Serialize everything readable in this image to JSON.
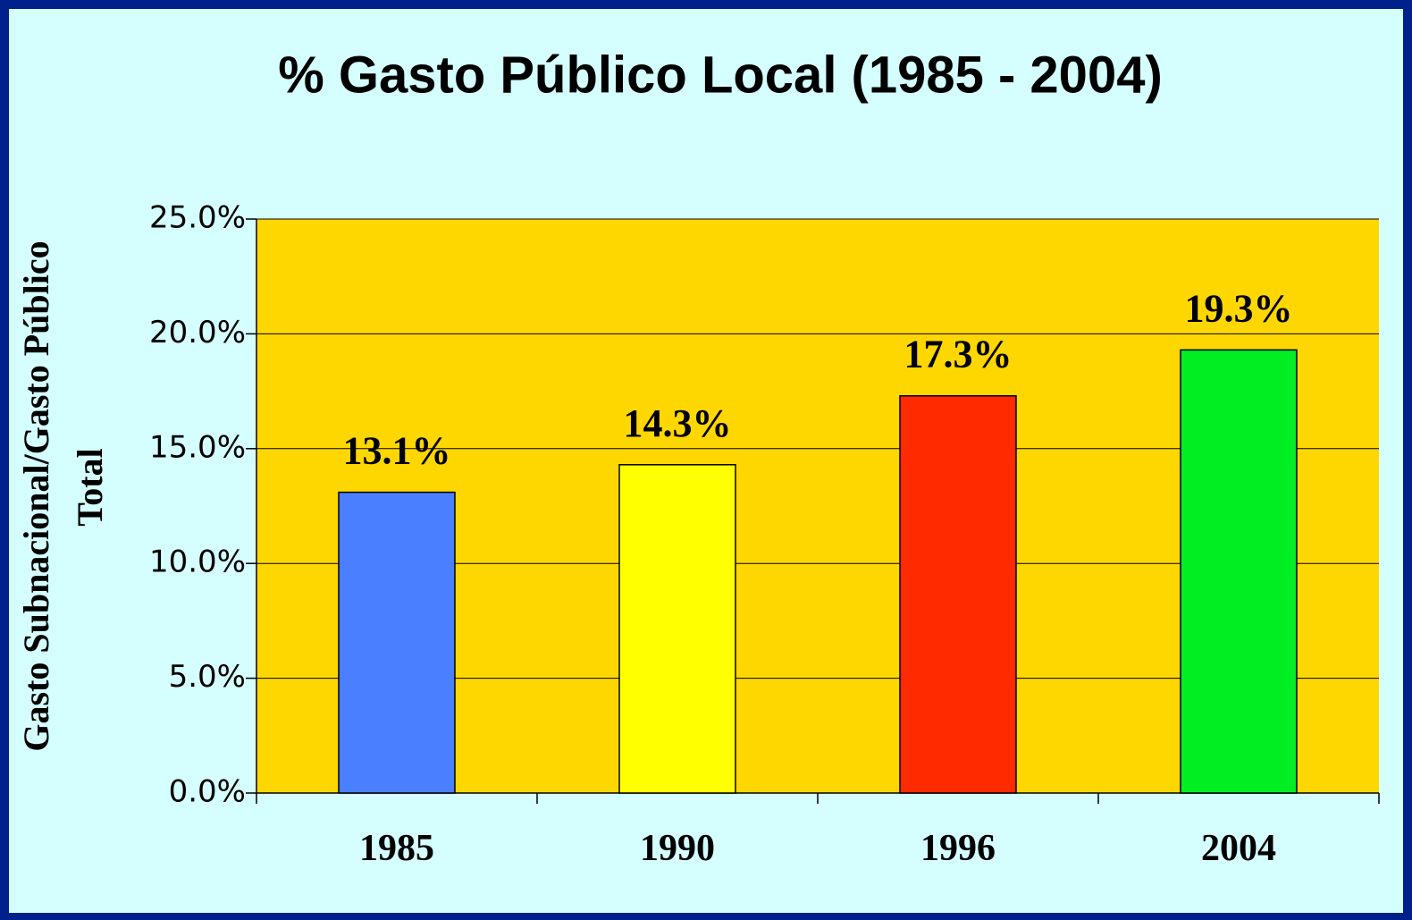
{
  "chart_data": {
    "type": "bar",
    "title": "% Gasto Público Local (1985 - 2004)",
    "ylabel": [
      "Gasto  Subnacional/Gasto  Público",
      "Total"
    ],
    "categories": [
      "1985",
      "1990",
      "1996",
      "2004"
    ],
    "values": [
      13.1,
      14.3,
      17.3,
      19.3
    ],
    "value_labels": [
      "13.1%",
      "14.3%",
      "17.3%",
      "19.3%"
    ],
    "colors": [
      "#4a7fff",
      "#ffff00",
      "#ff2a00",
      "#00ee22"
    ],
    "ylim": [
      0,
      25
    ],
    "yticks": [
      {
        "value": 0,
        "label": "0.0%"
      },
      {
        "value": 5,
        "label": "5.0%"
      },
      {
        "value": 10,
        "label": "10.0%"
      },
      {
        "value": 15,
        "label": "15.0%"
      },
      {
        "value": 20,
        "label": "20.0%"
      },
      {
        "value": 25,
        "label": "25.0%"
      }
    ],
    "grid": true,
    "plot_background": "#ffd700"
  }
}
